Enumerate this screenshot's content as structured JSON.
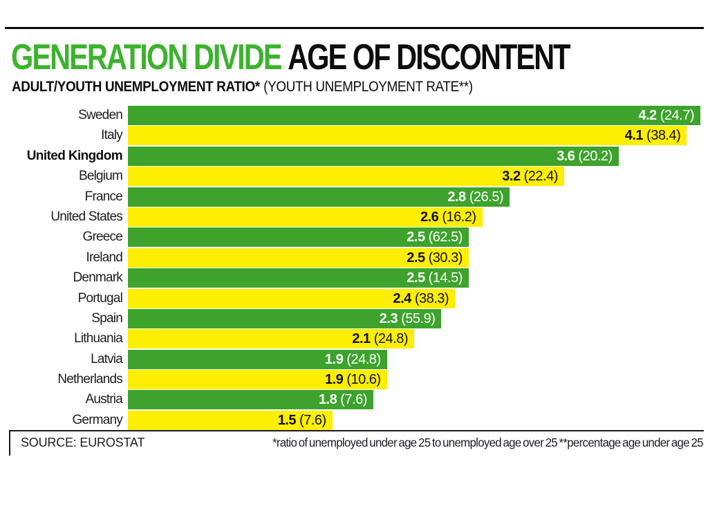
{
  "header": {
    "title_primary": "GENERATION DIVIDE",
    "title_secondary": "AGE OF DISCONTENT",
    "subtitle_bold": "ADULT/YOUTH UNEMPLOYMENT RATIO*",
    "subtitle_regular": "(YOUTH UNEMPLOYMENT RATE**)"
  },
  "chart_data": {
    "type": "bar",
    "orientation": "horizontal",
    "title": "GENERATION DIVIDE AGE OF DISCONTENT",
    "subtitle": "ADULT/YOUTH UNEMPLOYMENT RATIO* (YOUTH UNEMPLOYMENT RATE**)",
    "xlim": [
      0,
      4.2
    ],
    "grid": false,
    "legend": false,
    "value_label_format": "ratio (rate)",
    "colors": {
      "green_bar": "#3da32c",
      "yellow_bar": "#fdee02",
      "title_green": "#3cb32d",
      "text_on_green": "#ffffff",
      "text_on_yellow": "#111111"
    },
    "highlight_category": "United Kingdom",
    "categories": [
      "Sweden",
      "Italy",
      "United Kingdom",
      "Belgium",
      "France",
      "United States",
      "Greece",
      "Ireland",
      "Denmark",
      "Portugal",
      "Spain",
      "Lithuania",
      "Latvia",
      "Netherlands",
      "Austria",
      "Germany"
    ],
    "series": [
      {
        "name": "Adult/youth unemployment ratio",
        "values": [
          4.2,
          4.1,
          3.6,
          3.2,
          2.8,
          2.6,
          2.5,
          2.5,
          2.5,
          2.4,
          2.3,
          2.1,
          1.9,
          1.9,
          1.8,
          1.5
        ]
      },
      {
        "name": "Youth unemployment rate",
        "values": [
          24.7,
          38.4,
          20.2,
          22.4,
          26.5,
          16.2,
          62.5,
          30.3,
          14.5,
          38.3,
          55.9,
          24.8,
          24.8,
          10.6,
          7.6,
          7.6
        ]
      }
    ],
    "bars": [
      {
        "country": "Sweden",
        "ratio": 4.2,
        "rate": 24.7,
        "color": "green",
        "highlight": false
      },
      {
        "country": "Italy",
        "ratio": 4.1,
        "rate": 38.4,
        "color": "yellow",
        "highlight": false
      },
      {
        "country": "United Kingdom",
        "ratio": 3.6,
        "rate": 20.2,
        "color": "green",
        "highlight": true
      },
      {
        "country": "Belgium",
        "ratio": 3.2,
        "rate": 22.4,
        "color": "yellow",
        "highlight": false
      },
      {
        "country": "France",
        "ratio": 2.8,
        "rate": 26.5,
        "color": "green",
        "highlight": false
      },
      {
        "country": "United States",
        "ratio": 2.6,
        "rate": 16.2,
        "color": "yellow",
        "highlight": false
      },
      {
        "country": "Greece",
        "ratio": 2.5,
        "rate": 62.5,
        "color": "green",
        "highlight": false
      },
      {
        "country": "Ireland",
        "ratio": 2.5,
        "rate": 30.3,
        "color": "yellow",
        "highlight": false
      },
      {
        "country": "Denmark",
        "ratio": 2.5,
        "rate": 14.5,
        "color": "green",
        "highlight": false
      },
      {
        "country": "Portugal",
        "ratio": 2.4,
        "rate": 38.3,
        "color": "yellow",
        "highlight": false
      },
      {
        "country": "Spain",
        "ratio": 2.3,
        "rate": 55.9,
        "color": "green",
        "highlight": false
      },
      {
        "country": "Lithuania",
        "ratio": 2.1,
        "rate": 24.8,
        "color": "yellow",
        "highlight": false
      },
      {
        "country": "Latvia",
        "ratio": 1.9,
        "rate": 24.8,
        "color": "green",
        "highlight": false
      },
      {
        "country": "Netherlands",
        "ratio": 1.9,
        "rate": 10.6,
        "color": "yellow",
        "highlight": false
      },
      {
        "country": "Austria",
        "ratio": 1.8,
        "rate": 7.6,
        "color": "green",
        "highlight": false
      },
      {
        "country": "Germany",
        "ratio": 1.5,
        "rate": 7.6,
        "color": "yellow",
        "highlight": false
      }
    ]
  },
  "footer": {
    "source": "SOURCE: EUROSTAT",
    "footnote": "*ratio of unemployed under age 25 to unemployed age over 25 **percentage age under age 25"
  }
}
